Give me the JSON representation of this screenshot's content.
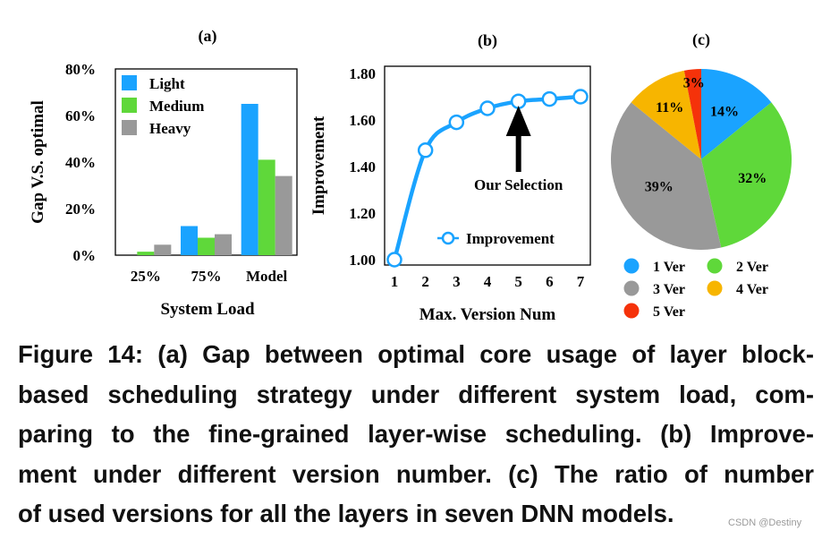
{
  "chart_data": [
    {
      "type": "bar",
      "panel_label": "(a)",
      "xlabel": "System Load",
      "ylabel": "Gap V.S. optimal",
      "ylim": [
        0,
        80
      ],
      "yticks": [
        "0%",
        "20%",
        "40%",
        "60%",
        "80%"
      ],
      "categories": [
        "25%",
        "75%",
        "Model"
      ],
      "legend_position": "top-left",
      "series": [
        {
          "name": "Light",
          "color": "#1aa3ff",
          "values": [
            0,
            12.5,
            65
          ]
        },
        {
          "name": "Medium",
          "color": "#5fd83a",
          "values": [
            1.5,
            7.5,
            41
          ]
        },
        {
          "name": "Heavy",
          "color": "#999999",
          "values": [
            4.5,
            9,
            34
          ]
        }
      ]
    },
    {
      "type": "line",
      "panel_label": "(b)",
      "xlabel": "Max. Version Num",
      "ylabel": "Improvement",
      "ylim": [
        1.0,
        1.8
      ],
      "yticks": [
        "1.00",
        "1.20",
        "1.40",
        "1.60",
        "1.80"
      ],
      "x": [
        1,
        2,
        3,
        4,
        5,
        6,
        7
      ],
      "xticks": [
        "1",
        "2",
        "3",
        "4",
        "5",
        "6",
        "7"
      ],
      "legend_position": "bottom-right",
      "series": [
        {
          "name": "Improvement",
          "color": "#1aa3ff",
          "values": [
            1.0,
            1.47,
            1.59,
            1.65,
            1.68,
            1.69,
            1.7
          ]
        }
      ],
      "annotation": {
        "text": "Our Selection",
        "x": 5
      }
    },
    {
      "type": "pie",
      "panel_label": "(c)",
      "legend_position": "bottom",
      "slices": [
        {
          "name": "1 Ver",
          "label": "14%",
          "value": 14,
          "color": "#1aa3ff"
        },
        {
          "name": "2 Ver",
          "label": "32%",
          "value": 32,
          "color": "#5fd83a"
        },
        {
          "name": "3 Ver",
          "label": "39%",
          "value": 39,
          "color": "#999999"
        },
        {
          "name": "4 Ver",
          "label": "11%",
          "value": 11,
          "color": "#f7b500"
        },
        {
          "name": "5 Ver",
          "label": "3%",
          "value": 3,
          "color": "#f5320a"
        }
      ]
    }
  ],
  "caption": [
    "Figure 14:  (a) Gap between optimal core usage of layer block-",
    "based scheduling strategy under different system load, com-",
    "paring to the fine-grained layer-wise scheduling. (b) Improve-",
    "ment under different version number. (c) The ratio of number",
    "of used versions for all the layers in seven DNN models."
  ],
  "watermark": "CSDN @Destiny"
}
